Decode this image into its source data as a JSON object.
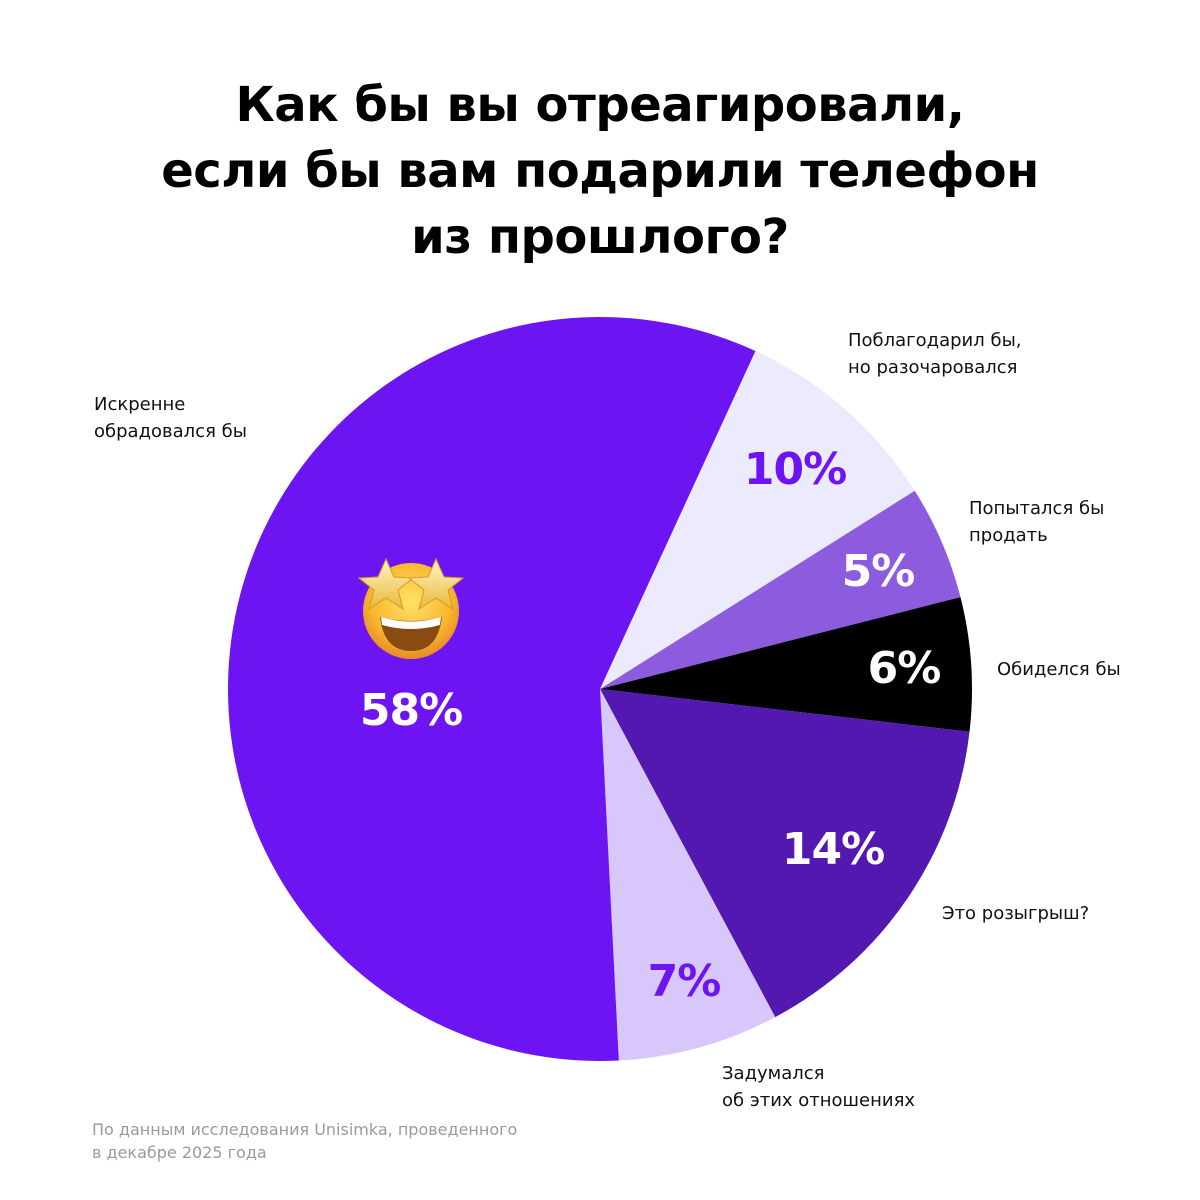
{
  "title": {
    "lines": [
      "Как бы вы отреагировали,",
      "если бы вам подарили телефон",
      "из прошлого?"
    ]
  },
  "footnote": {
    "lines": [
      "По данным исследования Unisimka, проведенного",
      "в декабре 2025 года"
    ]
  },
  "emoji": {
    "name": "star-struck-emoji",
    "glyph": "🤩"
  },
  "chart_data": {
    "type": "pie",
    "title": "Как бы вы отреагировали, если бы вам подарили телефон из прошлого?",
    "center": [
      600,
      689
    ],
    "radius": 372,
    "start_angle_deg": 24.7,
    "direction": "clockwise",
    "slices": [
      {
        "label": "Поблагодарил бы, но разочаровался",
        "label_lines": [
          "Поблагодарил бы,",
          "но разочаровался"
        ],
        "value": 10,
        "value_label": "10%",
        "color": "#ECEAFD",
        "text_color": "#6C15F2",
        "sweep_deg": 33.1
      },
      {
        "label": "Попытался бы продать",
        "label_lines": [
          "Попытался бы",
          "продать"
        ],
        "value": 5,
        "value_label": "5%",
        "color": "#8D5CDE",
        "text_color": "#FFFFFF",
        "sweep_deg": 17.9
      },
      {
        "label": "Обиделся бы",
        "label_lines": [
          "Обиделся бы"
        ],
        "value": 6,
        "value_label": "6%",
        "color": "#000000",
        "text_color": "#FFFFFF",
        "sweep_deg": 20.9
      },
      {
        "label": "Это розыгрыш?",
        "label_lines": [
          "Это розыгрыш?"
        ],
        "value": 14,
        "value_label": "14%",
        "color": "#5318AF",
        "text_color": "#FFFFFF",
        "sweep_deg": 55.3
      },
      {
        "label": "Задумался об этих отношениях",
        "label_lines": [
          "Задумался",
          "об этих отношениях"
        ],
        "value": 7,
        "value_label": "7%",
        "color": "#D8C7FB",
        "text_color": "#6C15F2",
        "sweep_deg": 25.2
      },
      {
        "label": "Искренне обрадовался бы",
        "label_lines": [
          "Искренне",
          "обрадовался бы"
        ],
        "value": 58,
        "value_label": "58%",
        "color": "#6C15F2",
        "text_color": "#FFFFFF",
        "sweep_deg": 207.6
      }
    ],
    "legend": "none (direct labels)",
    "xlabel": "",
    "ylabel": ""
  }
}
